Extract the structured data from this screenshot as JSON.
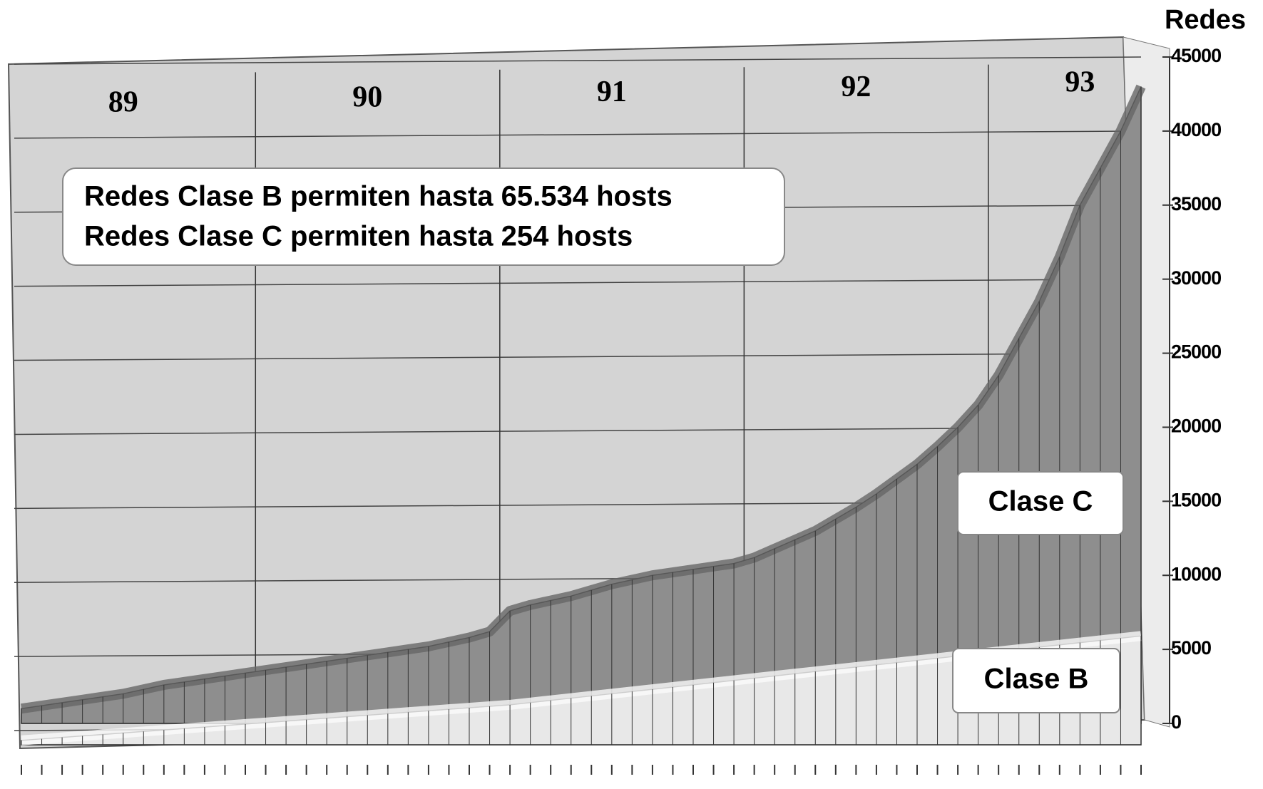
{
  "chart_data": {
    "type": "area",
    "y_axis_label": "Redes",
    "annotations": [
      "Redes Clase B permiten hasta 65.534 hosts",
      "Redes Clase C permiten hasta 254 hosts"
    ],
    "categories": [
      null,
      null,
      null,
      null,
      null,
      "89",
      null,
      null,
      null,
      null,
      null,
      null,
      null,
      null,
      null,
      null,
      null,
      "90",
      null,
      null,
      null,
      null,
      null,
      null,
      null,
      null,
      null,
      null,
      null,
      "91",
      null,
      null,
      null,
      null,
      null,
      null,
      null,
      null,
      null,
      null,
      null,
      "92",
      null,
      null,
      null,
      null,
      null,
      null,
      null,
      null,
      null,
      null,
      "93",
      null,
      null,
      null
    ],
    "series": [
      {
        "name": "Clase C",
        "color": "#8e8e8e",
        "values": [
          1000,
          1200,
          1400,
          1600,
          1800,
          2000,
          2300,
          2600,
          2800,
          3000,
          3200,
          3400,
          3600,
          3800,
          4000,
          4200,
          4400,
          4600,
          4800,
          5000,
          5200,
          5500,
          5800,
          6200,
          7600,
          8000,
          8300,
          8600,
          9000,
          9400,
          9700,
          10000,
          10200,
          10400,
          10600,
          10800,
          11200,
          11800,
          12400,
          13000,
          13800,
          14600,
          15500,
          16500,
          17500,
          18700,
          20000,
          21500,
          23500,
          26000,
          28500,
          31500,
          35000,
          37500,
          40000,
          43000
        ]
      },
      {
        "name": "Clase B",
        "color": "#e8e8e8",
        "values": [
          300,
          400,
          500,
          600,
          700,
          800,
          900,
          1000,
          1100,
          1200,
          1300,
          1400,
          1500,
          1600,
          1700,
          1800,
          1900,
          2000,
          2100,
          2200,
          2300,
          2400,
          2500,
          2600,
          2700,
          2850,
          3000,
          3150,
          3300,
          3450,
          3600,
          3750,
          3900,
          4050,
          4200,
          4350,
          4500,
          4650,
          4800,
          4950,
          5100,
          5250,
          5400,
          5550,
          5700,
          5850,
          6000,
          6150,
          6300,
          6450,
          6600,
          6750,
          6900,
          7050,
          7200,
          7350
        ]
      }
    ],
    "ylim": [
      0,
      45000
    ],
    "yticks": [
      0,
      5000,
      10000,
      15000,
      20000,
      25000,
      30000,
      35000,
      40000,
      45000
    ],
    "grid": true
  }
}
